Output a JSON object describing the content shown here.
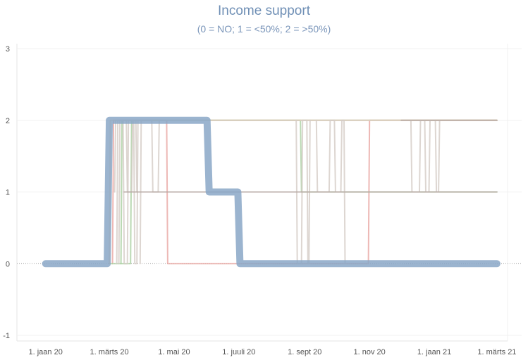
{
  "chart_data": {
    "type": "line",
    "title": "Income support",
    "subtitle": "(0 = NO; 1 = <50%; 2 = >50%)",
    "xlabel": "",
    "ylabel": "",
    "ylim": [
      -1,
      3
    ],
    "yticks": [
      "3",
      "2",
      "1",
      "0",
      "-1"
    ],
    "xticks": [
      {
        "label": "1. jaan 20",
        "date": "2020-01-01"
      },
      {
        "label": "1. märts 20",
        "date": "2020-03-01"
      },
      {
        "label": "1. mai 20",
        "date": "2020-05-01"
      },
      {
        "label": "1. juuli 20",
        "date": "2020-07-01"
      },
      {
        "label": "1. sept 20",
        "date": "2020-09-01"
      },
      {
        "label": "1. nov 20",
        "date": "2020-11-01"
      },
      {
        "label": "1. jaan 21",
        "date": "2021-01-01"
      },
      {
        "label": "1. märts 21",
        "date": "2021-03-01"
      }
    ],
    "xlim": [
      "2019-12-05",
      "2021-03-11"
    ],
    "zero_reference_line": true,
    "grid": true,
    "series": [
      {
        "color": "#e8a6a3",
        "values": [
          {
            "x": "2020-03-04",
            "y": 0
          },
          {
            "x": "2020-03-05",
            "y": 2
          },
          {
            "x": "2020-04-24",
            "y": 2
          },
          {
            "x": "2020-04-25",
            "y": 0
          },
          {
            "x": "2020-10-31",
            "y": 0
          },
          {
            "x": "2020-11-01",
            "y": 2
          },
          {
            "x": "2021-03-01",
            "y": 2
          }
        ]
      },
      {
        "color": "#a9cfa0",
        "values": [
          {
            "x": "2020-03-01",
            "y": 0
          },
          {
            "x": "2020-03-21",
            "y": 0
          },
          {
            "x": "2020-03-22",
            "y": 2
          },
          {
            "x": "2020-08-28",
            "y": 2
          },
          {
            "x": "2020-08-29",
            "y": 1
          },
          {
            "x": "2021-03-01",
            "y": 1
          }
        ]
      },
      {
        "color": "#a9cfa0",
        "values": [
          {
            "x": "2020-03-12",
            "y": 0
          },
          {
            "x": "2020-03-13",
            "y": 2
          },
          {
            "x": "2021-03-01",
            "y": 2
          }
        ]
      },
      {
        "color": "#f6d3a6",
        "values": [
          {
            "x": "2020-03-01",
            "y": 0
          },
          {
            "x": "2020-03-02",
            "y": 2
          },
          {
            "x": "2021-03-01",
            "y": 2
          }
        ]
      },
      {
        "color": "#d5ccc6",
        "values": [
          {
            "x": "2020-03-06",
            "y": 1
          },
          {
            "x": "2020-03-07",
            "y": 2
          },
          {
            "x": "2020-04-10",
            "y": 2
          },
          {
            "x": "2020-04-11",
            "y": 1
          },
          {
            "x": "2020-04-16",
            "y": 1
          },
          {
            "x": "2020-04-17",
            "y": 2
          },
          {
            "x": "2021-03-01",
            "y": 2
          }
        ]
      },
      {
        "color": "#d5ccc6",
        "values": [
          {
            "x": "2020-03-08",
            "y": 0
          },
          {
            "x": "2020-03-09",
            "y": 2
          },
          {
            "x": "2020-03-14",
            "y": 2
          },
          {
            "x": "2020-03-15",
            "y": 0
          },
          {
            "x": "2020-03-18",
            "y": 0
          },
          {
            "x": "2020-03-19",
            "y": 2
          },
          {
            "x": "2020-03-24",
            "y": 2
          },
          {
            "x": "2020-03-25",
            "y": 0
          },
          {
            "x": "2020-03-27",
            "y": 0
          },
          {
            "x": "2020-03-28",
            "y": 2
          },
          {
            "x": "2020-03-30",
            "y": 2
          }
        ]
      },
      {
        "color": "#d5ccc6",
        "values": [
          {
            "x": "2020-03-10",
            "y": 0
          },
          {
            "x": "2020-03-11",
            "y": 2
          },
          {
            "x": "2020-03-17",
            "y": 2
          },
          {
            "x": "2020-03-18",
            "y": 1
          },
          {
            "x": "2020-03-22",
            "y": 1
          },
          {
            "x": "2020-03-23",
            "y": 2
          },
          {
            "x": "2020-03-26",
            "y": 2
          },
          {
            "x": "2020-03-27",
            "y": 1
          }
        ]
      },
      {
        "color": "#d5ccc6",
        "values": [
          {
            "x": "2020-03-30",
            "y": 0
          },
          {
            "x": "2020-03-31",
            "y": 2
          }
        ]
      },
      {
        "color": "#d5ccc6",
        "values": [
          {
            "x": "2020-08-24",
            "y": 2
          },
          {
            "x": "2020-08-25",
            "y": 0
          },
          {
            "x": "2020-08-29",
            "y": 0
          },
          {
            "x": "2020-08-30",
            "y": 2
          },
          {
            "x": "2020-09-03",
            "y": 2
          },
          {
            "x": "2020-09-04",
            "y": 0
          },
          {
            "x": "2020-09-05",
            "y": 0
          },
          {
            "x": "2020-09-06",
            "y": 2
          }
        ]
      },
      {
        "color": "#d5ccc6",
        "values": [
          {
            "x": "2020-09-12",
            "y": 2
          },
          {
            "x": "2020-09-13",
            "y": 1
          },
          {
            "x": "2020-09-24",
            "y": 1
          },
          {
            "x": "2020-09-25",
            "y": 2
          },
          {
            "x": "2020-09-29",
            "y": 2
          },
          {
            "x": "2020-09-30",
            "y": 1
          },
          {
            "x": "2020-10-05",
            "y": 1
          },
          {
            "x": "2020-10-06",
            "y": 2
          },
          {
            "x": "2020-10-08",
            "y": 2
          },
          {
            "x": "2020-10-09",
            "y": 0
          }
        ]
      },
      {
        "color": "#d5ccc6",
        "values": [
          {
            "x": "2020-12-10",
            "y": 2
          },
          {
            "x": "2020-12-11",
            "y": 1
          },
          {
            "x": "2020-12-18",
            "y": 1
          },
          {
            "x": "2020-12-19",
            "y": 2
          },
          {
            "x": "2020-12-23",
            "y": 2
          },
          {
            "x": "2020-12-24",
            "y": 1
          },
          {
            "x": "2020-12-27",
            "y": 1
          },
          {
            "x": "2020-12-28",
            "y": 2
          },
          {
            "x": "2021-01-02",
            "y": 2
          },
          {
            "x": "2021-01-03",
            "y": 1
          },
          {
            "x": "2021-01-05",
            "y": 1
          },
          {
            "x": "2021-01-06",
            "y": 2
          }
        ]
      },
      {
        "color": "#b5a7a2",
        "values": [
          {
            "x": "2020-03-15",
            "y": 1
          },
          {
            "x": "2021-03-01",
            "y": 1
          }
        ]
      },
      {
        "color": "#b5a7a2",
        "values": [
          {
            "x": "2020-12-01",
            "y": 2
          },
          {
            "x": "2021-03-01",
            "y": 2
          }
        ]
      },
      {
        "color": "#8aa7c7",
        "width": 10,
        "values": [
          {
            "x": "2020-01-01",
            "y": 0
          },
          {
            "x": "2020-02-28",
            "y": 0
          },
          {
            "x": "2020-03-01",
            "y": 2
          },
          {
            "x": "2020-06-01",
            "y": 2
          },
          {
            "x": "2020-06-03",
            "y": 1
          },
          {
            "x": "2020-06-30",
            "y": 1
          },
          {
            "x": "2020-07-02",
            "y": 0
          },
          {
            "x": "2021-03-01",
            "y": 0
          }
        ]
      }
    ]
  }
}
